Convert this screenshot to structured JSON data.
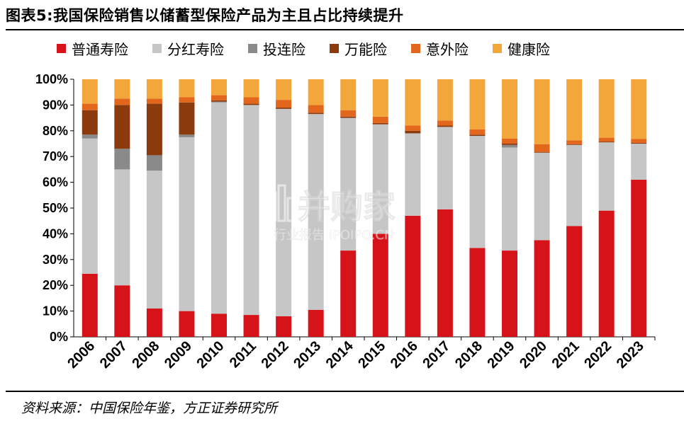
{
  "title": "图表5:我国保险销售以储蓄型保险产品为主且占比持续提升",
  "source": "资料来源：中国保险年鉴，方正证券研究所",
  "watermark": {
    "main": "并购家",
    "sub": "行业报告 IPOIPO.CN"
  },
  "chart_data": {
    "type": "bar",
    "stacked": true,
    "percent": true,
    "categories": [
      "2006",
      "2007",
      "2008",
      "2009",
      "2010",
      "2011",
      "2012",
      "2013",
      "2014",
      "2015",
      "2016",
      "2017",
      "2018",
      "2019",
      "2020",
      "2021",
      "2022",
      "2023"
    ],
    "y_ticks": [
      "0%",
      "10%",
      "20%",
      "30%",
      "40%",
      "50%",
      "60%",
      "70%",
      "80%",
      "90%",
      "100%"
    ],
    "ylim": [
      0,
      100
    ],
    "legend_position": "top",
    "series": [
      {
        "name": "普通寿险",
        "color": "#d7131a",
        "values": [
          24.5,
          20,
          11,
          10,
          9,
          8.5,
          8,
          10.5,
          33.5,
          40,
          47,
          49.5,
          34.5,
          33.5,
          37.5,
          43,
          49,
          61
        ]
      },
      {
        "name": "分红寿险",
        "color": "#c6c6c6",
        "values": [
          52.5,
          45,
          53.5,
          67.5,
          82,
          81.5,
          80.5,
          76,
          51.5,
          42.5,
          32,
          32,
          43.5,
          40,
          34,
          31.5,
          26.5,
          14
        ]
      },
      {
        "name": "投连险",
        "color": "#8a8a8a",
        "values": [
          1.5,
          8,
          6,
          1,
          0.3,
          0,
          0,
          0,
          0,
          0,
          0,
          0,
          0,
          1,
          0,
          0,
          0,
          0
        ]
      },
      {
        "name": "万能险",
        "color": "#8b3a0e",
        "values": [
          9.5,
          17,
          20,
          12.5,
          0.5,
          0.5,
          0.5,
          0.5,
          0.5,
          0.5,
          1,
          0.5,
          0.5,
          0.5,
          0.3,
          0.3,
          0.3,
          0.3
        ]
      },
      {
        "name": "意外险",
        "color": "#e2661b",
        "values": [
          2.5,
          2.5,
          2,
          2,
          2,
          2.5,
          3,
          3,
          2.5,
          2.5,
          2,
          2,
          2,
          2,
          3,
          1.5,
          1.5,
          1.5
        ]
      },
      {
        "name": "健康险",
        "color": "#f3a73b",
        "values": [
          9.5,
          7.5,
          7.5,
          7,
          6.2,
          7,
          8,
          10,
          12,
          14.5,
          18,
          16,
          19.5,
          23,
          25.2,
          23.7,
          22.7,
          23.2
        ]
      }
    ]
  }
}
